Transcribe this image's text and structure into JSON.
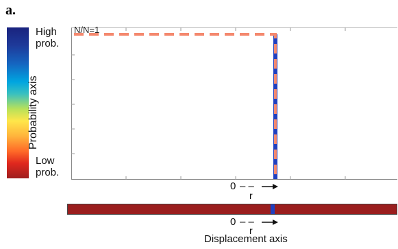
{
  "figure": {
    "panel_letter": "a.",
    "colorbar": {
      "high_label_line1": "High",
      "high_label_line2": "prob.",
      "low_label_line1": "Low",
      "low_label_line2": "prob.",
      "axis_label": "Probability axis",
      "top_color": "#1a237e",
      "bottom_color": "#9e1e1e"
    },
    "plot": {
      "annotation": "N/N=1",
      "step_line_color": "#1f3fbf",
      "dashed_line_color": "#f4886e",
      "axis_origin": "0",
      "axis_r_dash": "– –",
      "axis_r": "r",
      "axis_arrow": "→"
    },
    "displacement_bar": {
      "bar_color": "#9a1e1e",
      "spike_color": "#1f3fbf",
      "axis_origin": "0",
      "axis_r_dash": "– –",
      "axis_r": "r",
      "axis_arrow": "→",
      "axis_label": "Displacement axis"
    }
  }
}
